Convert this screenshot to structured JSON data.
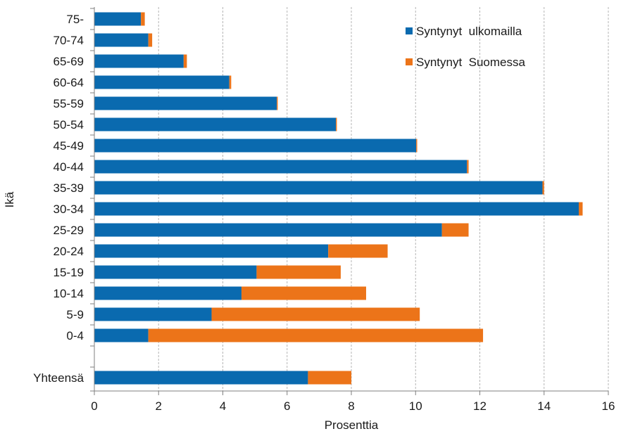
{
  "chart_data": {
    "type": "bar",
    "orientation": "horizontal",
    "stacked": true,
    "categories": [
      "75-",
      "70-74",
      "65-69",
      "60-64",
      "55-59",
      "50-54",
      "45-49",
      "40-44",
      "35-39",
      "30-34",
      "25-29",
      "20-24",
      "15-19",
      "10-14",
      "5-9",
      "0-4",
      "",
      "Yhteensä"
    ],
    "series": [
      {
        "name": "Syntynyt  ulkomailla",
        "color": "#0a6aaf",
        "values": [
          1.45,
          1.68,
          2.78,
          4.2,
          5.68,
          7.52,
          10.02,
          11.6,
          13.95,
          15.08,
          10.82,
          7.28,
          5.05,
          4.58,
          3.65,
          1.68,
          null,
          6.65
        ]
      },
      {
        "name": "Syntynyt  Suomessa",
        "color": "#ec7419",
        "values": [
          0.12,
          0.12,
          0.1,
          0.06,
          0.03,
          0.03,
          0.03,
          0.05,
          0.05,
          0.12,
          0.83,
          1.85,
          2.62,
          3.88,
          6.48,
          10.42,
          null,
          1.35
        ]
      }
    ],
    "xlabel": "Prosenttia",
    "ylabel": "Ikä",
    "xlim": [
      0,
      16
    ],
    "xticks": [
      "0",
      "2",
      "4",
      "6",
      "8",
      "10",
      "12",
      "14",
      "16"
    ],
    "grid": "vertical-dashed",
    "legend_position": "top-right"
  }
}
